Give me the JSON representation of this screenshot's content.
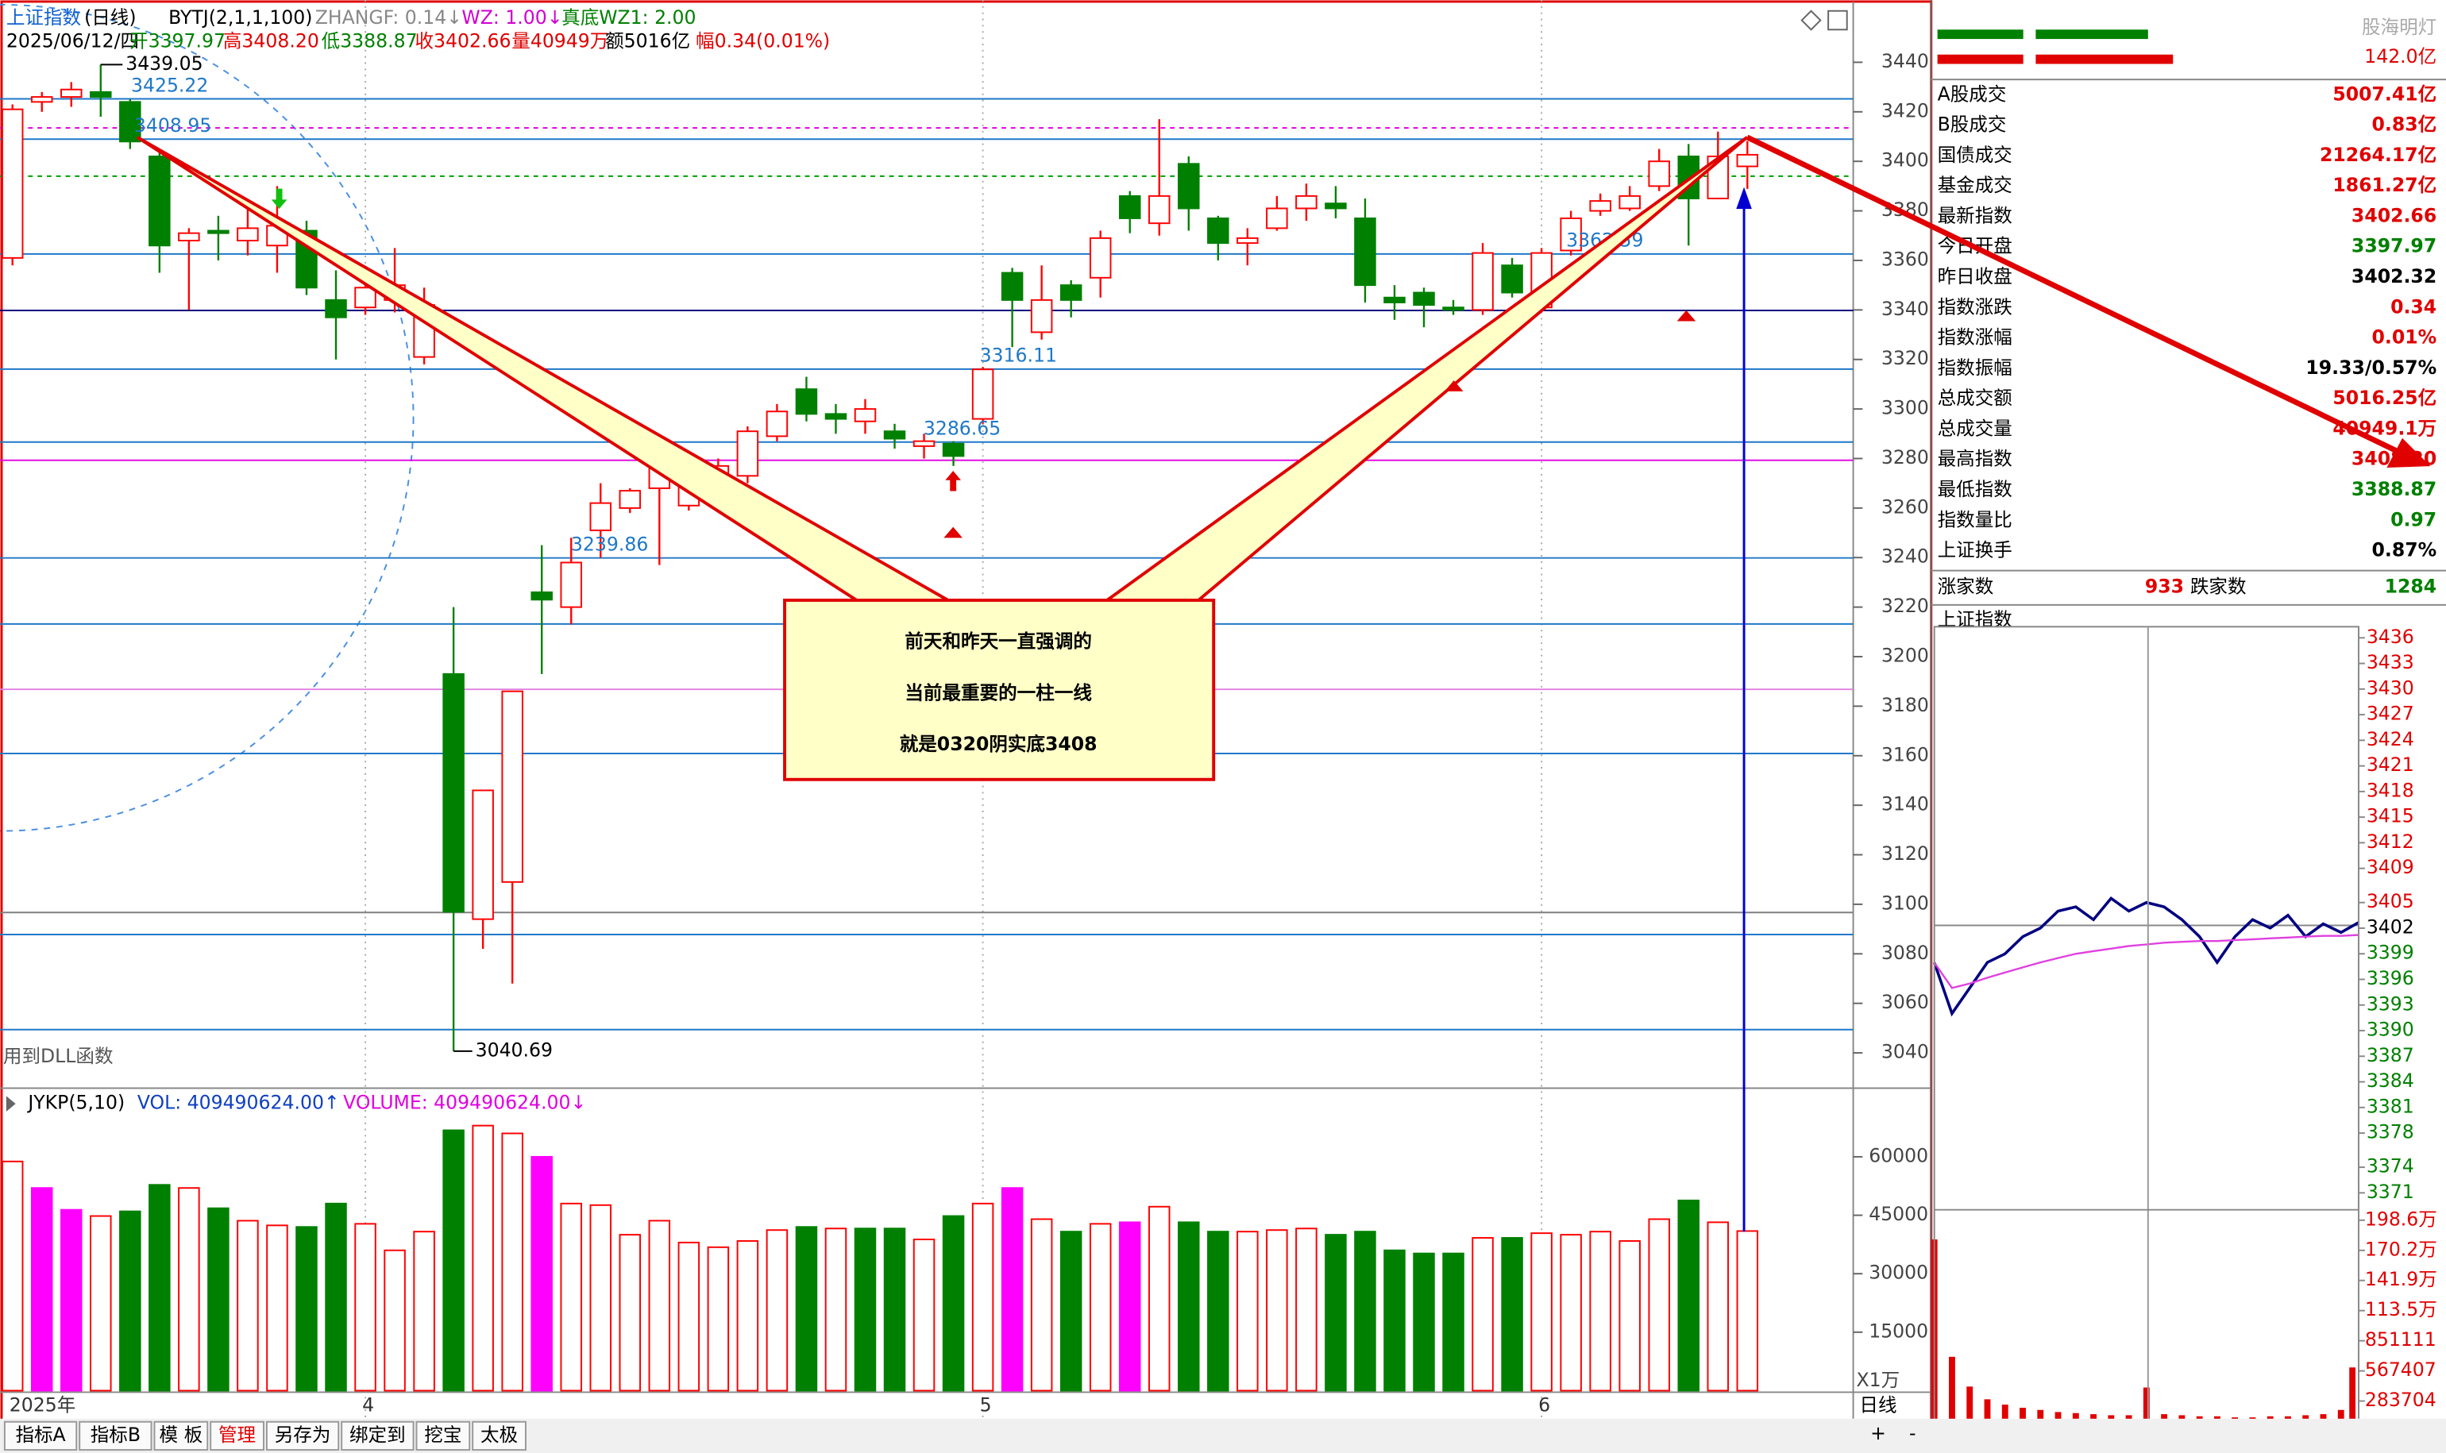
{
  "header": {
    "name": "上证指数",
    "period": "(日线)",
    "indicator": "BYTJ(2,1,1,100)",
    "zhangf": "ZHANGF: 0.14↓",
    "wz": "WZ: 1.00↓",
    "wz1": "真底WZ1: 2.00",
    "date": "2025/06/12/四",
    "open": "开3397.97",
    "high": "高3408.20",
    "low": "低3388.87",
    "close": "收3402.66",
    "volume": "量40949万",
    "amount": "额5016亿",
    "change": "幅0.34(0.01%)"
  },
  "volume_header": {
    "name": "JYKP(5,10)",
    "vol": "VOL: 409490624.00↑",
    "volume": "VOLUME: 409490624.00↓"
  },
  "annotations": {
    "callout": [
      "前天和昨天一直强调的",
      "当前最重要的一柱一线",
      "就是0320阴实底3408"
    ],
    "dll_note": "用到DLL函数"
  },
  "chart_data": [
    {
      "type": "candlestick",
      "categories": [
        "2025年",
        null,
        null,
        null,
        null,
        null,
        null,
        null,
        null,
        null,
        null,
        null,
        "4",
        null,
        null,
        null,
        null,
        null,
        null,
        null,
        null,
        null,
        null,
        null,
        null,
        null,
        null,
        null,
        null,
        null,
        null,
        null,
        null,
        "5",
        null,
        null,
        null,
        null,
        null,
        null,
        null,
        null,
        null,
        null,
        null,
        null,
        null,
        null,
        null,
        null,
        null,
        null,
        "6",
        null,
        null,
        null,
        null,
        null,
        null,
        null
      ],
      "open": [
        3361,
        3424,
        3426,
        3428,
        3424,
        3402,
        3368,
        3372,
        3368,
        3366,
        3372,
        3344,
        3341,
        3344,
        3321,
        3193,
        3094,
        3109,
        3226,
        3220,
        3251,
        3260,
        3268,
        3261,
        3270,
        3273,
        3289,
        3308,
        3298,
        3295,
        3291,
        3285,
        3286,
        3296,
        3355,
        3331,
        3350,
        3353,
        3386,
        3375,
        3399,
        3377,
        3367,
        3373,
        3381,
        3383,
        3377,
        3345,
        3347,
        3341,
        3340,
        3358,
        3341,
        3364,
        3380,
        3381,
        3390,
        3402,
        3385,
        3397.97
      ],
      "high": [
        3423,
        3428,
        3432,
        3439.05,
        3425,
        3405,
        3373,
        3378,
        3383,
        3390,
        3376,
        3356,
        3352,
        3365,
        3349,
        3220,
        3146,
        3186,
        3245,
        3248,
        3270,
        3268,
        3285,
        3281,
        3280,
        3293,
        3302,
        3313,
        3302,
        3304,
        3294,
        3290,
        3287,
        3317,
        3357,
        3358,
        3352,
        3372,
        3388,
        3417,
        3402,
        3378,
        3373,
        3386,
        3391,
        3390,
        3385,
        3350,
        3349,
        3344,
        3367,
        3361,
        3365,
        3380,
        3387,
        3390,
        3405,
        3407,
        3412,
        3408.2
      ],
      "low": [
        3358,
        3420,
        3422,
        3418,
        3405,
        3355,
        3340,
        3360,
        3362,
        3355,
        3346,
        3320,
        3338,
        3339,
        3318,
        3040.69,
        3082,
        3068,
        3193,
        3213,
        3240,
        3258,
        3237,
        3259,
        3268,
        3270,
        3287,
        3295,
        3290,
        3290,
        3284,
        3280,
        3277,
        3294,
        3325,
        3328,
        3337,
        3345,
        3371,
        3370,
        3372,
        3360,
        3358,
        3372,
        3376,
        3377,
        3343,
        3336,
        3333,
        3338,
        3338,
        3345,
        3341,
        3362,
        3378,
        3380,
        3388,
        3366,
        3385,
        3388.87
      ],
      "close": [
        3421,
        3426,
        3429,
        3426,
        3408,
        3366,
        3371,
        3371,
        3373,
        3374,
        3349,
        3337,
        3349,
        3350,
        3342,
        3097,
        3146,
        3186,
        3223,
        3238,
        3262,
        3267,
        3276,
        3273,
        3277,
        3291,
        3299,
        3298,
        3296,
        3300,
        3288,
        3287,
        3281,
        3316,
        3344,
        3344,
        3344,
        3369,
        3377,
        3386,
        3381,
        3367,
        3369,
        3381,
        3386,
        3381,
        3350,
        3343,
        3342,
        3340,
        3363,
        3347,
        3363,
        3377,
        3384,
        3386,
        3400,
        3385,
        3402,
        3402.66
      ],
      "up_color": "#ff0000",
      "down_color": "#008000",
      "ylim": [
        3027,
        3462
      ],
      "yticks": [
        3040,
        3060,
        3080,
        3100,
        3120,
        3140,
        3160,
        3180,
        3200,
        3220,
        3240,
        3260,
        3280,
        3300,
        3320,
        3340,
        3360,
        3380,
        3400,
        3420,
        3440
      ],
      "high_label": 3439.05,
      "low_label": 3040.69,
      "labeled_levels": [
        3425.22,
        3408.95,
        3362.59,
        3316.11,
        3286.65,
        3239.86
      ],
      "level_color": "#1f78c8",
      "level_lines": [
        {
          "value": 3413.5,
          "color": "#e000e0"
        },
        {
          "value": 3394,
          "color": "#00a000"
        },
        {
          "value": 3339.8,
          "color": "#000080"
        },
        {
          "value": 3279.3,
          "color": "#e000e0"
        },
        {
          "value": 3213.2,
          "color": "#1f78c8"
        },
        {
          "value": 3186.8,
          "color": "#e080e0"
        },
        {
          "value": 3160.9,
          "color": "#1f78c8"
        },
        {
          "value": 3096.7,
          "color": "#808080"
        },
        {
          "value": 3087.8,
          "color": "#1f78c8"
        },
        {
          "value": 3049.4,
          "color": "#1f78c8"
        }
      ]
    },
    {
      "type": "bar",
      "values": [
        58800,
        52000,
        46400,
        44800,
        46000,
        52800,
        52000,
        46800,
        43600,
        42400,
        42000,
        48000,
        42800,
        36000,
        40800,
        66800,
        68000,
        66000,
        60000,
        48000,
        47600,
        40000,
        43600,
        38000,
        36800,
        38400,
        41200,
        42000,
        41600,
        41600,
        41600,
        38800,
        44800,
        48000,
        52000,
        44000,
        40800,
        42800,
        43200,
        47200,
        43200,
        40800,
        40800,
        41200,
        41600,
        40000,
        40800,
        36000,
        35200,
        35200,
        39200,
        39200,
        40400,
        40000,
        40800,
        38400,
        44000,
        48800,
        43200,
        40949
      ],
      "colors": [
        "#ff0000",
        "#ff00ff",
        "#ff00ff",
        "#ff0000",
        "#008000",
        "#008000",
        "#ff0000",
        "#008000",
        "#ff0000",
        "#ff0000",
        "#008000",
        "#008000",
        "#ff0000",
        "#ff0000",
        "#ff0000",
        "#008000",
        "#ff0000",
        "#ff0000",
        "#ff00ff",
        "#ff0000",
        "#ff0000",
        "#ff0000",
        "#ff0000",
        "#ff0000",
        "#ff0000",
        "#ff0000",
        "#ff0000",
        "#008000",
        "#ff0000",
        "#008000",
        "#008000",
        "#ff0000",
        "#008000",
        "#ff0000",
        "#ff00ff",
        "#ff0000",
        "#008000",
        "#ff0000",
        "#ff00ff",
        "#ff0000",
        "#008000",
        "#008000",
        "#ff0000",
        "#ff0000",
        "#ff0000",
        "#008000",
        "#008000",
        "#008000",
        "#008000",
        "#008000",
        "#ff0000",
        "#008000",
        "#ff0000",
        "#ff0000",
        "#ff0000",
        "#ff0000",
        "#ff0000",
        "#008000",
        "#ff0000",
        "#ff0000"
      ],
      "hollow_color": "#ff0000",
      "unit": "X1万",
      "ylim": [
        0,
        69600
      ],
      "yticks": [
        15000,
        30000,
        45000,
        60000
      ]
    },
    {
      "type": "line",
      "title": "上证指数",
      "x": [
        0,
        10,
        20,
        30,
        40,
        50,
        60,
        70,
        80,
        90,
        100,
        110,
        120,
        130,
        140,
        150,
        160,
        170,
        180,
        190,
        200,
        210,
        220,
        230,
        240
      ],
      "xlim": [
        0,
        240
      ],
      "series": [
        {
          "color": "#000080",
          "values": [
            3397.97,
            3392,
            3395,
            3398,
            3399,
            3401,
            3402,
            3404,
            3404.5,
            3403,
            3405.5,
            3404,
            3405,
            3404.5,
            3403,
            3401,
            3398,
            3401,
            3403,
            3402,
            3403.5,
            3401,
            3402.5,
            3401.5,
            3402.66
          ]
        },
        {
          "color": "#e040e0",
          "values": [
            3397.97,
            3395,
            3395.5,
            3396.2,
            3396.8,
            3397.4,
            3398,
            3398.5,
            3399,
            3399.3,
            3399.6,
            3399.9,
            3400.1,
            3400.3,
            3400.4,
            3400.5,
            3400.5,
            3400.6,
            3400.7,
            3400.8,
            3400.9,
            3401,
            3401.1,
            3401.1,
            3401.2
          ]
        }
      ],
      "ref_value": 3402.32,
      "up_color": "#e00000",
      "down_color": "#008000",
      "flat_color": "#000000",
      "ylim": [
        3369.2,
        3437.3
      ],
      "yticks": [
        3436,
        3433,
        3430,
        3427,
        3424,
        3421,
        3418,
        3415,
        3412,
        3409,
        3405,
        3402,
        3399,
        3396,
        3393,
        3390,
        3387,
        3384,
        3381,
        3378,
        3374,
        3371
      ]
    },
    {
      "type": "bar",
      "x": [
        0,
        10,
        20,
        30,
        40,
        50,
        60,
        70,
        80,
        90,
        100,
        110,
        120,
        130,
        140,
        150,
        160,
        170,
        180,
        190,
        200,
        210,
        220,
        230,
        240
      ],
      "xlim": [
        0,
        240
      ],
      "values": [
        1805000,
        700000,
        420000,
        300000,
        250000,
        220000,
        200000,
        180000,
        170000,
        160000,
        150000,
        150000,
        411000,
        160000,
        150000,
        140000,
        140000,
        130000,
        130000,
        140000,
        140000,
        150000,
        160000,
        200000,
        600000
      ],
      "color": "#e00000",
      "ylim": [
        0,
        2084000
      ],
      "yticks": [
        {
          "value": 1986000,
          "label": "198.6万"
        },
        {
          "value": 1702000,
          "label": "170.2万"
        },
        {
          "value": 1419000,
          "label": "141.9万"
        },
        {
          "value": 1135000,
          "label": "113.5万"
        },
        851111,
        567407,
        283704
      ]
    }
  ],
  "info_panel": {
    "logo": "股海明灯",
    "top_value": "142.0亿",
    "rows": [
      [
        "A股成交",
        "5007.41亿"
      ],
      [
        "B股成交",
        "0.83亿"
      ],
      [
        "国债成交",
        "21264.17亿"
      ],
      [
        "基金成交",
        "1861.27亿"
      ],
      [
        "最新指数",
        "3402.66"
      ],
      [
        "今日开盘",
        "3397.97"
      ],
      [
        "昨日收盘",
        "3402.32"
      ],
      [
        "指数涨跌",
        "0.34"
      ],
      [
        "指数涨幅",
        "0.01%"
      ],
      [
        "指数振幅",
        "19.33/0.57%"
      ],
      [
        "总成交额",
        "5016.25亿"
      ],
      [
        "总成交量",
        "40949.1万"
      ],
      [
        "最高指数",
        "3408.20"
      ],
      [
        "最低指数",
        "3388.87"
      ],
      [
        "指数量比",
        "0.97"
      ],
      [
        "上证换手",
        "0.87%"
      ]
    ],
    "row_colors": [
      "#e00000",
      "#e00000",
      "#e00000",
      "#e00000",
      "#e00000",
      "#008000",
      "#000000",
      "#e00000",
      "#e00000",
      "#000000",
      "#e00000",
      "#e00000",
      "#e00000",
      "#008000",
      "#008000",
      "#000000"
    ],
    "rise_label": "涨家数",
    "rise": 933,
    "fall_label": "跌家数",
    "fall": 1284
  },
  "tabs": [
    "指标A",
    "指标B",
    "模 板",
    "管理",
    "另存为",
    "绑定到",
    "挖宝",
    "太极"
  ],
  "period_tab": "日线",
  "zoom": [
    "+",
    "-"
  ]
}
